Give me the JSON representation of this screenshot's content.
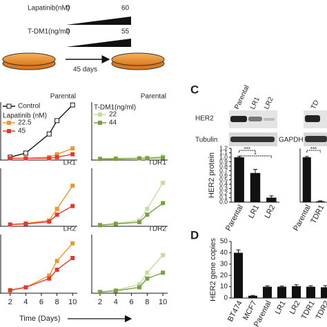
{
  "schematic": {
    "lapatinib_label": "Lapatinib(nM)",
    "lapatinib_start": "0",
    "lapatinib_end": "60",
    "tdm1_label": "T-DM1(ng/ml)",
    "tdm1_start": "0",
    "tdm1_end": "55",
    "duration": "45 days"
  },
  "panel_labels": [
    "C",
    "D"
  ],
  "blots": {
    "left": {
      "lanes": [
        "Parental",
        "LR1",
        "LR2"
      ],
      "rows": [
        "HER2",
        "Tubulin"
      ]
    },
    "right": {
      "lanes": [
        "TD"
      ],
      "rows": [
        "GAPDH"
      ]
    }
  },
  "x_axis_label": "Time (Days)",
  "chart_data": [
    {
      "type": "line",
      "title": "Parental",
      "legend": true,
      "legend_title": "Lapatinib (nM)",
      "x": [
        2,
        4,
        7,
        8,
        10
      ],
      "xlim": [
        0.7,
        10.6
      ],
      "ylim": [
        0,
        1
      ],
      "series": [
        {
          "name": "Control",
          "color": "#111111",
          "open": true,
          "values": [
            0.05,
            0.12,
            0.45,
            0.68,
            0.95
          ]
        },
        {
          "name": "22.5",
          "color": "#f0962a",
          "values": [
            0.03,
            0.03,
            0.05,
            0.1,
            0.2
          ]
        },
        {
          "name": "45",
          "color": "#e8362a",
          "values": [
            0.03,
            0.03,
            0.03,
            0.05,
            0.1
          ]
        }
      ]
    },
    {
      "type": "line",
      "title": "Parental",
      "legend": true,
      "legend_title": "T-DM1(ng/ml)",
      "x": [
        2,
        4,
        7,
        8,
        10
      ],
      "xlim": [
        0.86,
        10.6
      ],
      "ylim": [
        0,
        1
      ],
      "series": [
        {
          "name": "22",
          "color": "#c6dc9e",
          "values": [
            0.02,
            0.03,
            0.03,
            0.04,
            0.06
          ]
        },
        {
          "name": "44",
          "color": "#78a040",
          "values": [
            0.02,
            0.02,
            0.03,
            0.03,
            0.04
          ]
        }
      ]
    },
    {
      "type": "line",
      "title": "LR1",
      "x": [
        2,
        4,
        7,
        8,
        10
      ],
      "xlim": [
        0.7,
        10.6
      ],
      "ylim": [
        0,
        1
      ],
      "series": [
        {
          "name": "22.5",
          "color": "#f0962a",
          "values": [
            0.03,
            0.05,
            0.1,
            0.3,
            0.7
          ]
        },
        {
          "name": "45",
          "color": "#e8362a",
          "values": [
            0.03,
            0.04,
            0.08,
            0.2,
            0.35
          ]
        }
      ]
    },
    {
      "type": "line",
      "title": "TDR1",
      "x": [
        2,
        4,
        7,
        8,
        10
      ],
      "xlim": [
        0.86,
        10.6
      ],
      "ylim": [
        0,
        1
      ],
      "series": [
        {
          "name": "22",
          "color": "#c6dc9e",
          "values": [
            0.02,
            0.05,
            0.1,
            0.3,
            0.75
          ]
        },
        {
          "name": "44",
          "color": "#78a040",
          "values": [
            0.02,
            0.04,
            0.07,
            0.2,
            0.4
          ]
        }
      ]
    },
    {
      "type": "line",
      "title": "LR2",
      "x": [
        2,
        4,
        7,
        8,
        10
      ],
      "xlim": [
        0.7,
        10.6
      ],
      "ylim": [
        0,
        1
      ],
      "xticks": [
        2,
        4,
        6,
        8,
        10
      ],
      "series": [
        {
          "name": "22.5",
          "color": "#f0962a",
          "values": [
            0.05,
            0.1,
            0.3,
            0.55,
            0.85
          ]
        },
        {
          "name": "45",
          "color": "#e8362a",
          "values": [
            0.05,
            0.1,
            0.25,
            0.4,
            0.6
          ]
        }
      ]
    },
    {
      "type": "line",
      "title": "TDR2",
      "x": [
        2,
        4,
        7,
        8,
        10
      ],
      "xlim": [
        0.86,
        10.6
      ],
      "ylim": [
        0,
        1
      ],
      "xticks": [
        2,
        4,
        6,
        8,
        10
      ],
      "series": [
        {
          "name": "22",
          "color": "#c6dc9e",
          "values": [
            0.02,
            0.05,
            0.15,
            0.35,
            0.65
          ]
        },
        {
          "name": "44",
          "color": "#78a040",
          "values": [
            0.02,
            0.04,
            0.1,
            0.25,
            0.35
          ]
        }
      ]
    },
    {
      "type": "bar",
      "ylabel": "HER2 protein",
      "categories": [
        "Parental",
        "LR1",
        "LR2"
      ],
      "values": [
        1.0,
        0.65,
        0.1
      ],
      "errors": [
        0.02,
        0.08,
        0.04
      ],
      "color": "#111111",
      "ylim": [
        0,
        1.2
      ],
      "yticks": [
        {
          "value": 0,
          "label": "0,0"
        },
        {
          "value": 0.1,
          "label": "0,1"
        },
        {
          "value": 0.2,
          "label": "0,2"
        },
        {
          "value": 0.3,
          "label": "0,3"
        },
        {
          "value": 0.4,
          "label": "0,4"
        },
        {
          "value": 0.5,
          "label": "0,5"
        },
        {
          "value": 0.6,
          "label": "0,6"
        },
        {
          "value": 0.7,
          "label": "0,7"
        },
        {
          "value": 0.8,
          "label": "0,8"
        },
        {
          "value": 0.9,
          "label": "0,9"
        },
        {
          "value": 1,
          "label": "1,0"
        },
        {
          "value": 1.1,
          "label": "1,1"
        },
        {
          "value": 1.2,
          "label": "1,2"
        }
      ],
      "annotations": [
        "***",
        "*"
      ]
    },
    {
      "type": "bar",
      "categories": [
        "Parental",
        "TDR1"
      ],
      "values": [
        1.0,
        0.02
      ],
      "errors": [
        0.02,
        0.01
      ],
      "color": "#111111",
      "ylim": [
        0,
        1.2
      ],
      "annotations": [
        "***"
      ]
    },
    {
      "type": "bar",
      "ylabel": "HER2 gene copies",
      "categories": [
        "BT474",
        "MCF7",
        "Parental",
        "LR1",
        "LR2",
        "TDR1",
        "TDR2"
      ],
      "values": [
        40,
        2,
        10,
        10,
        10.5,
        10,
        9.5
      ],
      "errors": [
        2.5,
        0.3,
        0.8,
        0.6,
        1.2,
        0.9,
        1.5
      ],
      "color": "#111111",
      "ylim": [
        0,
        50
      ],
      "yticks": [
        0,
        10,
        20,
        30,
        40,
        50
      ]
    }
  ]
}
